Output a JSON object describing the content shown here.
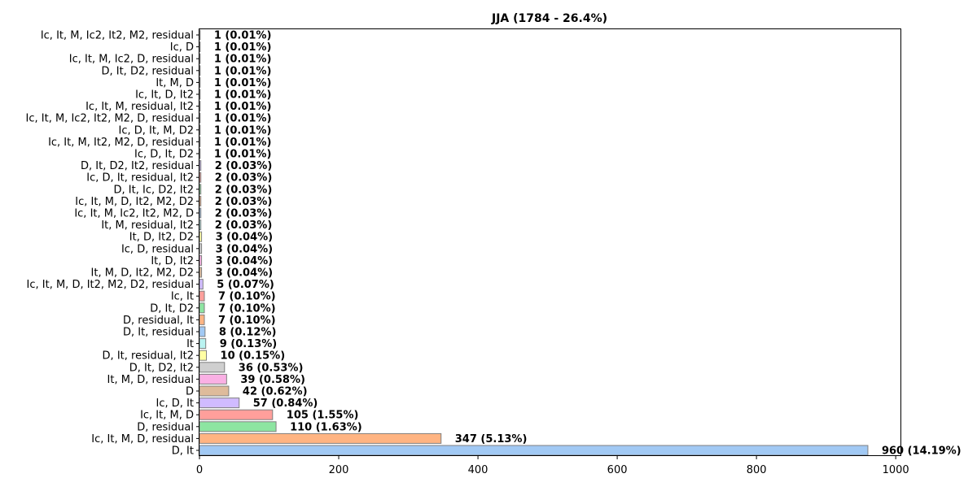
{
  "chart_data": {
    "type": "bar",
    "orientation": "horizontal",
    "title": "JJA (1784 - 26.4%)",
    "xlabel": "",
    "ylabel": "",
    "xlim": [
      0,
      1008
    ],
    "x_ticks": [
      0,
      200,
      400,
      600,
      800,
      1000
    ],
    "grid": false,
    "legend": "none",
    "categories": [
      "D, It",
      "Ic, It, M, D, residual",
      "D, residual",
      "Ic, It, M, D",
      "Ic, D, It",
      "D",
      "It, M, D, residual",
      "D, It, D2, It2",
      "D, It, residual, It2",
      "It",
      "D, It, residual",
      "D, residual, It",
      "D, It, D2",
      "Ic, It",
      "Ic, It, M, D, It2, M2, D2, residual",
      "It, M, D, It2, M2, D2",
      "It, D, It2",
      "Ic, D, residual",
      "It, D, It2, D2",
      "It, M, residual, It2",
      "Ic, It, M, Ic2, It2, M2, D",
      "Ic, It, M, D, It2, M2, D2",
      "D, It, Ic, D2, It2",
      "Ic, D, It, residual, It2",
      "D, It, D2, It2, residual",
      "Ic, D, It, D2",
      "Ic, It, M, It2, M2, D, residual",
      "Ic, D, It, M, D2",
      "Ic, It, M, Ic2, It2, M2, D, residual",
      "Ic, It, M, residual, It2",
      "Ic, It, D, It2",
      "It, M, D",
      "D, It, D2, residual",
      "Ic, It, M, Ic2, D, residual",
      "Ic, D",
      "Ic, It, M, Ic2, It2, M2, residual"
    ],
    "values": [
      960,
      347,
      110,
      105,
      57,
      42,
      39,
      36,
      10,
      9,
      8,
      7,
      7,
      7,
      5,
      3,
      3,
      3,
      3,
      2,
      2,
      2,
      2,
      2,
      2,
      1,
      1,
      1,
      1,
      1,
      1,
      1,
      1,
      1,
      1,
      1
    ],
    "data_labels": [
      "960 (14.19%)",
      "347 (5.13%)",
      "110 (1.63%)",
      "105 (1.55%)",
      "57 (0.84%)",
      "42 (0.62%)",
      "39 (0.58%)",
      "36 (0.53%)",
      "10 (0.15%)",
      "9 (0.13%)",
      "8 (0.12%)",
      "7 (0.10%)",
      "7 (0.10%)",
      "7 (0.10%)",
      "5 (0.07%)",
      "3 (0.04%)",
      "3 (0.04%)",
      "3 (0.04%)",
      "3 (0.04%)",
      "2 (0.03%)",
      "2 (0.03%)",
      "2 (0.03%)",
      "2 (0.03%)",
      "2 (0.03%)",
      "2 (0.03%)",
      "1 (0.01%)",
      "1 (0.01%)",
      "1 (0.01%)",
      "1 (0.01%)",
      "1 (0.01%)",
      "1 (0.01%)",
      "1 (0.01%)",
      "1 (0.01%)",
      "1 (0.01%)",
      "1 (0.01%)",
      "1 (0.01%)"
    ],
    "colors": [
      "#a1c9f4",
      "#ffb482",
      "#8de5a1",
      "#ff9f9b",
      "#d0bbff",
      "#debb9b",
      "#fab0e4",
      "#cfcfcf",
      "#fffea3",
      "#b9f2f0"
    ],
    "edge_color": "#7f7f7f"
  }
}
